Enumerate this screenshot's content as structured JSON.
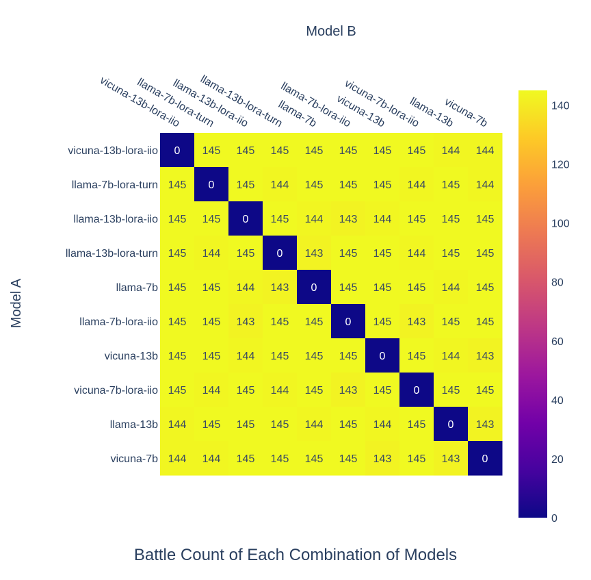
{
  "chart_data": {
    "type": "heatmap",
    "title": "Battle Count of Each Combination of Models",
    "xlabel": "Model B",
    "ylabel": "Model A",
    "x_categories": [
      "vicuna-13b-lora-iio",
      "llama-7b-lora-turn",
      "llama-13b-lora-iio",
      "llama-13b-lora-turn",
      "llama-7b",
      "llama-7b-lora-iio",
      "vicuna-13b",
      "vicuna-7b-lora-iio",
      "llama-13b",
      "vicuna-7b"
    ],
    "y_categories": [
      "vicuna-13b-lora-iio",
      "llama-7b-lora-turn",
      "llama-13b-lora-iio",
      "llama-13b-lora-turn",
      "llama-7b",
      "llama-7b-lora-iio",
      "vicuna-13b",
      "vicuna-7b-lora-iio",
      "llama-13b",
      "vicuna-7b"
    ],
    "values": [
      [
        0,
        145,
        145,
        145,
        145,
        145,
        145,
        145,
        144,
        144
      ],
      [
        145,
        0,
        145,
        144,
        145,
        145,
        145,
        144,
        145,
        144
      ],
      [
        145,
        145,
        0,
        145,
        144,
        143,
        144,
        145,
        145,
        145
      ],
      [
        145,
        144,
        145,
        0,
        143,
        145,
        145,
        144,
        145,
        145
      ],
      [
        145,
        145,
        144,
        143,
        0,
        145,
        145,
        145,
        144,
        145
      ],
      [
        145,
        145,
        143,
        145,
        145,
        0,
        145,
        143,
        145,
        145
      ],
      [
        145,
        145,
        144,
        145,
        145,
        145,
        0,
        145,
        144,
        143
      ],
      [
        145,
        144,
        145,
        144,
        145,
        143,
        145,
        0,
        145,
        145
      ],
      [
        144,
        145,
        145,
        145,
        144,
        145,
        144,
        145,
        0,
        143
      ],
      [
        144,
        144,
        145,
        145,
        145,
        145,
        143,
        145,
        143,
        0
      ]
    ],
    "colorbar": {
      "ticks": [
        0,
        20,
        40,
        60,
        80,
        100,
        120,
        140
      ],
      "zmin": 0,
      "zmax": 145
    },
    "colorscale": [
      "#0d0887",
      "#46039f",
      "#7201a8",
      "#9c179e",
      "#bd3786",
      "#d8576b",
      "#ed7953",
      "#fb9f3a",
      "#fdca26",
      "#f0f921"
    ],
    "x_axis_side": "top",
    "grid": false
  }
}
